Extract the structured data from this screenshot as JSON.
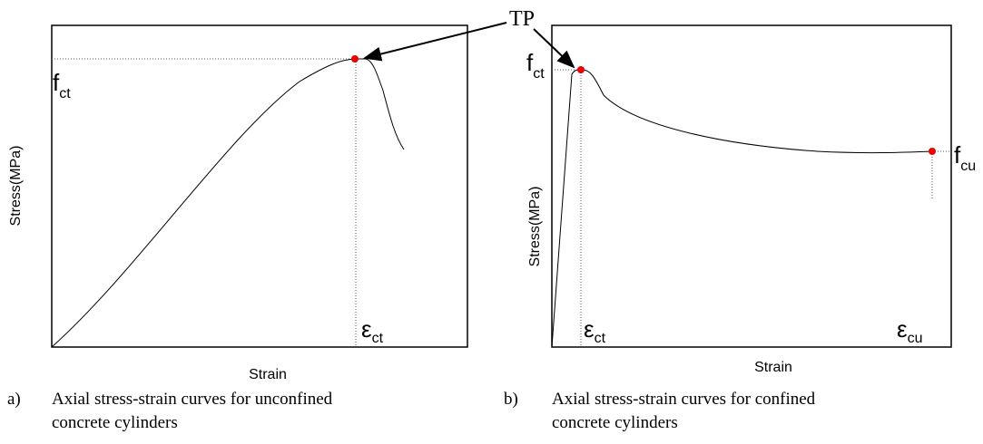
{
  "annotation": "TP",
  "panels": [
    {
      "y_label": "Stress(MPa)",
      "x_label": "Strain",
      "labels": [
        {
          "symbol": "f",
          "subscript": "ct"
        },
        {
          "symbol": "ε",
          "subscript": "ct"
        }
      ],
      "caption": {
        "marker": "a)",
        "lines": [
          "Axial stress-strain curves for unconfined",
          "concrete cylinders"
        ]
      }
    },
    {
      "y_label": "Stress(MPa)",
      "x_label": "Strain",
      "labels": [
        {
          "symbol": "f",
          "subscript": "ct"
        },
        {
          "symbol": "ε",
          "subscript": "ct"
        },
        {
          "symbol": "ε",
          "subscript": "cu"
        },
        {
          "symbol": "f",
          "subscript": "cu"
        }
      ],
      "caption": {
        "marker": "b)",
        "lines": [
          "Axial stress-strain curves for confined",
          "concrete cylinders"
        ]
      }
    }
  ]
}
